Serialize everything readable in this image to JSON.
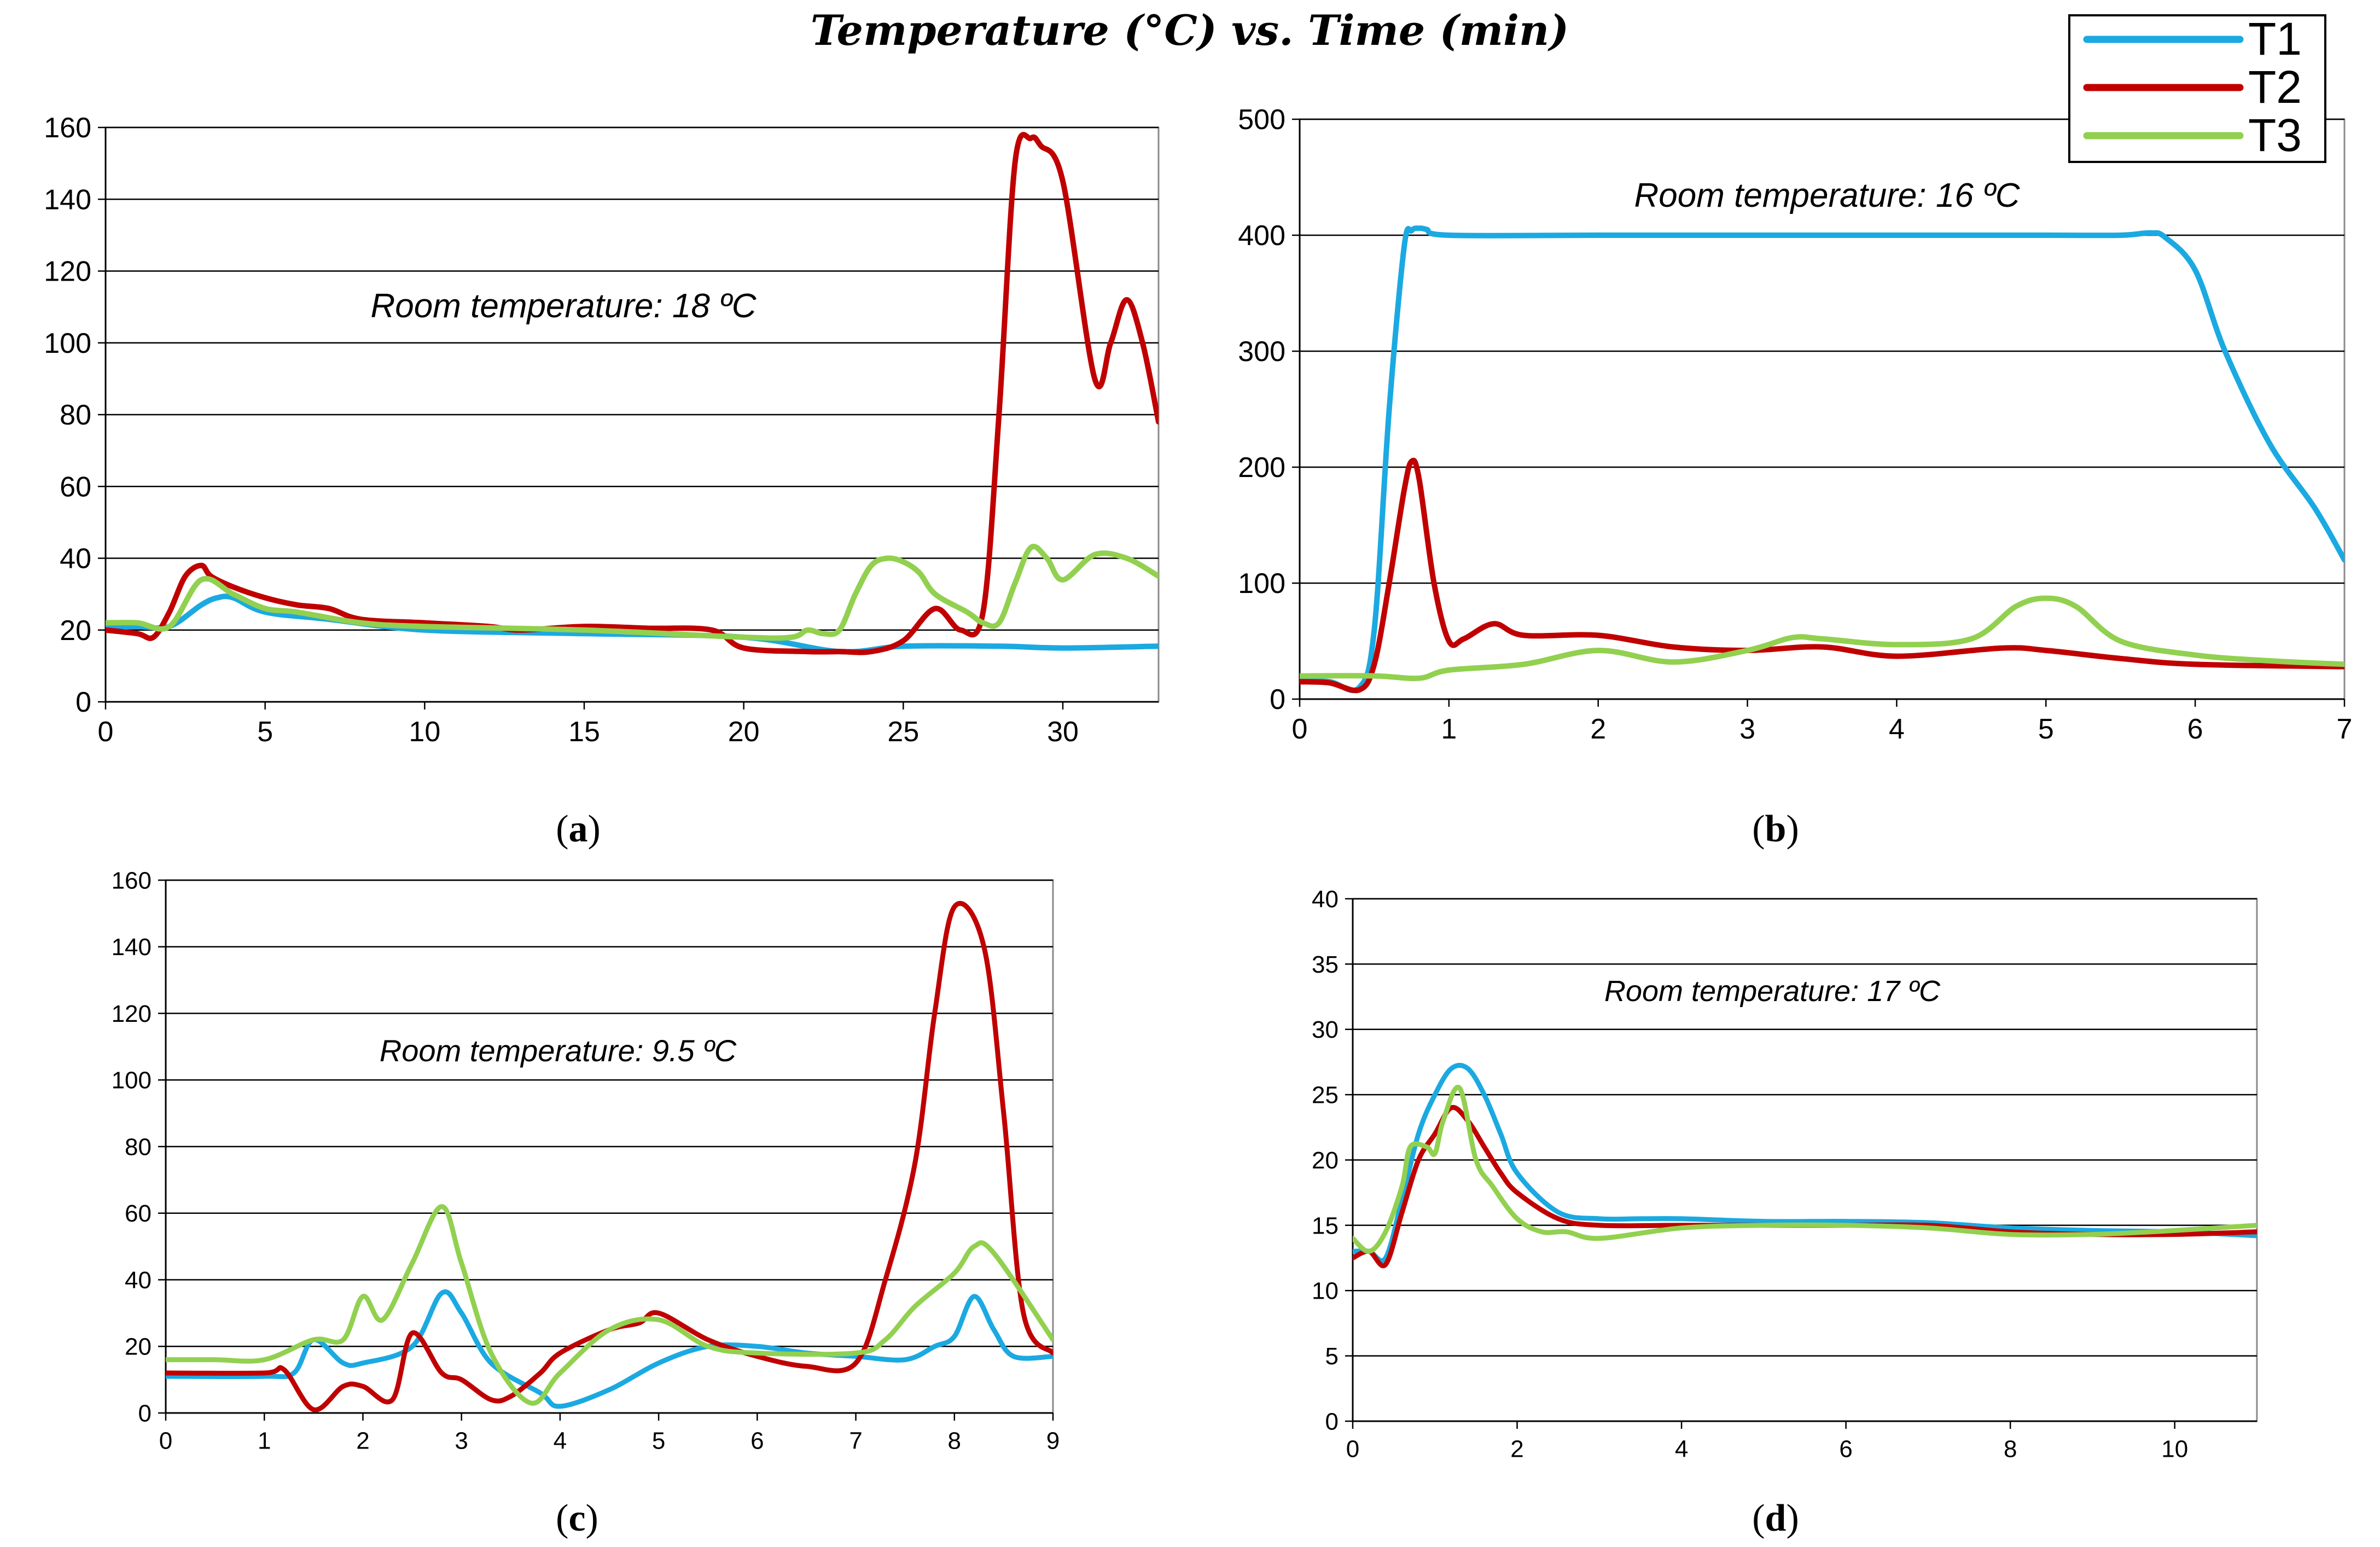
{
  "figure_title": "Temperature (°C) vs. Time (min)",
  "legend": {
    "entries": [
      {
        "name": "T1",
        "color": "#1BA9E1"
      },
      {
        "name": "T2",
        "color": "#C00000"
      },
      {
        "name": "T3",
        "color": "#92D050"
      }
    ]
  },
  "chart_data": [
    {
      "type": "line",
      "panel": "a",
      "caption": "(a)",
      "annotation": "Room temperature: 18 ºC",
      "title": "",
      "xlabel": "",
      "ylabel": "",
      "xlim": [
        0,
        33
      ],
      "ylim": [
        0,
        160
      ],
      "xticks": [
        0,
        5,
        10,
        15,
        20,
        25,
        30
      ],
      "yticks": [
        0,
        20,
        40,
        60,
        80,
        100,
        120,
        140,
        160
      ],
      "grid": "horizontal",
      "series": [
        {
          "name": "T1",
          "x": [
            0,
            1,
            2,
            3,
            3.5,
            4,
            5,
            7,
            10,
            15,
            20,
            23,
            25,
            28,
            30,
            33
          ],
          "y": [
            21,
            21,
            21,
            27,
            29,
            29,
            25,
            23,
            20,
            19,
            18,
            14,
            15.5,
            15.5,
            15,
            15.5
          ]
        },
        {
          "name": "T2",
          "x": [
            0,
            1,
            1.5,
            2,
            2.5,
            3,
            3.3,
            4,
            5,
            6,
            7,
            8,
            10,
            12,
            13,
            15,
            17,
            19,
            20,
            22,
            23,
            24,
            25,
            26,
            26.8,
            27.5,
            28,
            28.5,
            29,
            29.3,
            30,
            31,
            31.5,
            32,
            32.5,
            33
          ],
          "y": [
            20,
            19,
            18,
            25,
            35,
            38,
            35,
            32,
            29,
            27,
            26,
            23,
            22,
            21,
            20,
            21,
            20.5,
            20,
            15,
            14,
            14,
            14,
            17,
            26,
            20,
            25,
            80,
            150,
            157,
            155,
            145,
            90,
            100,
            112,
            100,
            78
          ]
        },
        {
          "name": "T3",
          "x": [
            0,
            1,
            2,
            3,
            4,
            5,
            6,
            8,
            10,
            15,
            20,
            21.5,
            22,
            22.5,
            23,
            23.5,
            24,
            24.5,
            25,
            25.5,
            26,
            27,
            27.5,
            28,
            28.5,
            29,
            29.5,
            30,
            31,
            32,
            33
          ],
          "y": [
            22,
            22,
            21,
            34,
            30,
            26,
            25,
            22,
            21,
            20,
            18,
            18,
            20,
            19,
            20,
            30,
            38,
            40,
            39,
            36,
            30,
            25,
            22,
            22,
            33,
            43,
            40,
            34,
            41,
            40,
            35
          ]
        }
      ]
    },
    {
      "type": "line",
      "panel": "b",
      "caption": "(b)",
      "annotation": "Room temperature: 16 ºC",
      "title": "",
      "xlabel": "",
      "ylabel": "",
      "xlim": [
        0,
        7
      ],
      "ylim": [
        0,
        500
      ],
      "xticks": [
        0,
        1,
        2,
        3,
        4,
        5,
        6,
        7
      ],
      "yticks": [
        0,
        100,
        200,
        300,
        400,
        500
      ],
      "grid": "horizontal",
      "series": [
        {
          "name": "T1",
          "x": [
            0,
            0.2,
            0.4,
            0.5,
            0.6,
            0.7,
            0.75,
            0.8,
            0.85,
            1,
            2,
            3,
            4,
            5,
            5.5,
            5.7,
            5.8,
            6,
            6.2,
            6.5,
            6.8,
            7
          ],
          "y": [
            16,
            15,
            10,
            60,
            250,
            390,
            404,
            406,
            405,
            400,
            400,
            400,
            400,
            400,
            400,
            402,
            398,
            370,
            300,
            220,
            165,
            120
          ]
        },
        {
          "name": "T2",
          "x": [
            0,
            0.2,
            0.4,
            0.5,
            0.6,
            0.7,
            0.75,
            0.8,
            0.9,
            1,
            1.1,
            1.3,
            1.5,
            2,
            2.5,
            3,
            3.5,
            4,
            4.7,
            5,
            5.5,
            6,
            7
          ],
          "y": [
            15,
            14,
            8,
            30,
            100,
            180,
            205,
            190,
            100,
            50,
            52,
            65,
            55,
            55,
            45,
            42,
            45,
            37,
            44,
            42,
            35,
            30,
            28
          ]
        },
        {
          "name": "T3",
          "x": [
            0,
            0.5,
            0.8,
            1,
            1.5,
            2,
            2.5,
            3,
            3.3,
            3.5,
            4,
            4.5,
            4.8,
            5,
            5.2,
            5.5,
            6,
            6.5,
            7
          ],
          "y": [
            20,
            20,
            18,
            25,
            30,
            42,
            32,
            42,
            53,
            52,
            47,
            52,
            80,
            87,
            80,
            50,
            38,
            33,
            30
          ]
        }
      ]
    },
    {
      "type": "line",
      "panel": "c",
      "caption": "(c)",
      "annotation": "Room temperature: 9.5 ºC",
      "title": "",
      "xlabel": "",
      "ylabel": "",
      "xlim": [
        0,
        9
      ],
      "ylim": [
        0,
        160
      ],
      "xticks": [
        0,
        1,
        2,
        3,
        4,
        5,
        6,
        7,
        8,
        9
      ],
      "yticks": [
        0,
        20,
        40,
        60,
        80,
        100,
        120,
        140,
        160
      ],
      "grid": "horizontal",
      "series": [
        {
          "name": "T1",
          "x": [
            0,
            1,
            1.3,
            1.5,
            1.8,
            2,
            2.5,
            2.8,
            3,
            3.3,
            3.8,
            4,
            4.5,
            5,
            5.5,
            6,
            6.5,
            7,
            7.5,
            7.8,
            8,
            8.2,
            8.4,
            8.6,
            9
          ],
          "y": [
            11,
            11,
            12,
            22,
            15,
            15,
            20,
            36,
            30,
            15,
            6,
            2,
            7,
            15,
            20,
            20,
            18,
            17,
            16,
            20,
            23,
            35,
            25,
            17,
            17
          ]
        },
        {
          "name": "T2",
          "x": [
            0,
            1,
            1.2,
            1.5,
            1.8,
            2,
            2.3,
            2.5,
            2.8,
            3,
            3.3,
            3.5,
            3.8,
            4,
            4.5,
            4.8,
            5,
            5.5,
            6,
            6.5,
            7,
            7.3,
            7.6,
            7.8,
            8,
            8.3,
            8.5,
            8.7,
            9
          ],
          "y": [
            12,
            12,
            13,
            1,
            8,
            8,
            4,
            24,
            12,
            10,
            4,
            5,
            12,
            18,
            25,
            27,
            30,
            22,
            17,
            14,
            15,
            40,
            75,
            120,
            152,
            140,
            90,
            30,
            18
          ]
        },
        {
          "name": "T3",
          "x": [
            0,
            0.5,
            1,
            1.5,
            1.8,
            2,
            2.2,
            2.5,
            2.8,
            3,
            3.3,
            3.7,
            4,
            4.5,
            5,
            5.5,
            6,
            7,
            7.3,
            7.6,
            8,
            8.2,
            8.4,
            9
          ],
          "y": [
            16,
            16,
            16,
            22,
            22,
            35,
            28,
            45,
            62,
            45,
            18,
            3,
            12,
            25,
            28,
            20,
            18,
            18,
            22,
            32,
            42,
            50,
            48,
            22
          ]
        }
      ]
    },
    {
      "type": "line",
      "panel": "d",
      "caption": "(d)",
      "annotation": "Room temperature: 17 ºC",
      "title": "",
      "xlabel": "",
      "ylabel": "",
      "xlim": [
        0,
        11
      ],
      "ylim": [
        0,
        40
      ],
      "xticks": [
        0,
        2,
        4,
        6,
        8,
        10
      ],
      "yticks": [
        0,
        5,
        10,
        15,
        20,
        25,
        30,
        35,
        40
      ],
      "grid": "horizontal",
      "series": [
        {
          "name": "T1",
          "x": [
            0,
            0.2,
            0.4,
            0.6,
            0.8,
            1,
            1.2,
            1.4,
            1.6,
            1.8,
            2,
            2.5,
            3,
            3.5,
            4,
            5,
            6,
            7,
            8,
            9,
            10,
            11
          ],
          "y": [
            13,
            13,
            12.5,
            17,
            22,
            25,
            27,
            27,
            25,
            22,
            19,
            16,
            15.5,
            15.5,
            15.5,
            15.3,
            15.3,
            15.2,
            14.8,
            14.6,
            14.5,
            14.2
          ]
        },
        {
          "name": "T2",
          "x": [
            0,
            0.2,
            0.4,
            0.6,
            0.8,
            1,
            1.2,
            1.4,
            1.6,
            1.8,
            2,
            2.5,
            3,
            4,
            5,
            6,
            7,
            8,
            9,
            10,
            11
          ],
          "y": [
            12.5,
            13,
            12,
            16,
            20,
            22,
            24,
            23,
            21,
            19,
            17.5,
            15.5,
            15,
            15,
            15,
            15,
            15,
            14.5,
            14.3,
            14.3,
            14.5
          ]
        },
        {
          "name": "T3",
          "x": [
            0,
            0.2,
            0.4,
            0.6,
            0.7,
            0.9,
            1,
            1.1,
            1.3,
            1.5,
            1.7,
            2,
            2.3,
            2.6,
            3,
            4,
            5,
            6,
            7,
            8,
            9,
            10,
            11
          ],
          "y": [
            14,
            13,
            14.5,
            18,
            21,
            21,
            20.5,
            23,
            25.5,
            20,
            18,
            15.5,
            14.5,
            14.5,
            14,
            14.8,
            15,
            15,
            14.8,
            14.3,
            14.3,
            14.6,
            15
          ]
        }
      ]
    }
  ]
}
